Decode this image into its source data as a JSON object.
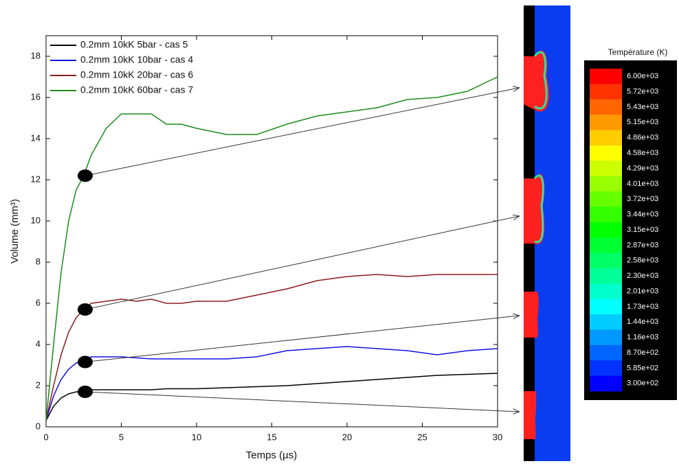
{
  "chart_data": {
    "type": "line",
    "x_label": "Temps (µs)",
    "y_label": "Volume (mm³)",
    "xlim": [
      0,
      30
    ],
    "ylim": [
      0,
      19
    ],
    "xticks": [
      0,
      5,
      10,
      15,
      20,
      25,
      30
    ],
    "yticks": [
      0,
      2,
      4,
      6,
      8,
      10,
      12,
      14,
      16,
      18
    ],
    "legend": "top-left",
    "x": [
      0,
      0.5,
      1,
      1.5,
      2,
      2.5,
      3,
      4,
      5,
      6,
      7,
      8,
      9,
      10,
      12,
      14,
      16,
      18,
      20,
      22,
      24,
      26,
      28,
      30
    ],
    "series": [
      {
        "name": "0.2mm 10kK 5bar - cas 5",
        "color": "#000000",
        "values": [
          0.3,
          1.0,
          1.4,
          1.6,
          1.7,
          1.7,
          1.8,
          1.8,
          1.8,
          1.8,
          1.8,
          1.85,
          1.85,
          1.85,
          1.9,
          1.95,
          2.0,
          2.1,
          2.2,
          2.3,
          2.4,
          2.5,
          2.55,
          2.6
        ]
      },
      {
        "name": "0.2mm 10kK 10bar - cas 4",
        "color": "#1010e0",
        "values": [
          0.3,
          1.5,
          2.3,
          2.8,
          3.1,
          3.2,
          3.4,
          3.4,
          3.4,
          3.35,
          3.3,
          3.3,
          3.3,
          3.3,
          3.3,
          3.4,
          3.7,
          3.8,
          3.9,
          3.8,
          3.7,
          3.5,
          3.7,
          3.8
        ]
      },
      {
        "name": "0.2mm 10kK 20bar - cas 6",
        "color": "#8b1a1a",
        "values": [
          0.3,
          2.0,
          3.5,
          4.6,
          5.3,
          5.7,
          6.0,
          6.1,
          6.2,
          6.1,
          6.2,
          6.0,
          6.0,
          6.1,
          6.1,
          6.4,
          6.7,
          7.1,
          7.3,
          7.4,
          7.3,
          7.4,
          7.4,
          7.4
        ]
      },
      {
        "name": "0.2mm 10kK 60bar - cas 7",
        "color": "#1a8a1a",
        "values": [
          0.3,
          4.0,
          7.5,
          10.0,
          11.5,
          12.2,
          13.2,
          14.5,
          15.2,
          15.2,
          15.2,
          14.7,
          14.7,
          14.5,
          14.2,
          14.2,
          14.7,
          15.1,
          15.3,
          15.5,
          15.9,
          16.0,
          16.3,
          17.0
        ]
      }
    ],
    "markers": {
      "x": [
        2.6,
        2.6,
        2.6,
        2.6
      ],
      "y": [
        12.2,
        5.7,
        3.15,
        1.7
      ]
    },
    "colorbar": {
      "title": "Température (K)",
      "ticks": [
        {
          "value": 6000,
          "label": "6.00e+03"
        },
        {
          "value": 5720,
          "label": "5.72e+03"
        },
        {
          "value": 5430,
          "label": "5.43e+03"
        },
        {
          "value": 5150,
          "label": "5.15e+03"
        },
        {
          "value": 4860,
          "label": "4.86e+03"
        },
        {
          "value": 4580,
          "label": "4.58e+03"
        },
        {
          "value": 4290,
          "label": "4.29e+03"
        },
        {
          "value": 4010,
          "label": "4.01e+03"
        },
        {
          "value": 3720,
          "label": "3.72e+03"
        },
        {
          "value": 3440,
          "label": "3.44e+03"
        },
        {
          "value": 3150,
          "label": "3.15e+03"
        },
        {
          "value": 2870,
          "label": "2.87e+03"
        },
        {
          "value": 2580,
          "label": "2.58e+03"
        },
        {
          "value": 2300,
          "label": "2.30e+03"
        },
        {
          "value": 2010,
          "label": "2.01e+03"
        },
        {
          "value": 1730,
          "label": "1.73e+03"
        },
        {
          "value": 1440,
          "label": "1.44e+03"
        },
        {
          "value": 1160,
          "label": "1.16e+03"
        },
        {
          "value": 870,
          "label": "8.70e+02"
        },
        {
          "value": 585,
          "label": "5.85e+02"
        },
        {
          "value": 300,
          "label": "3.00e+02"
        }
      ]
    }
  }
}
